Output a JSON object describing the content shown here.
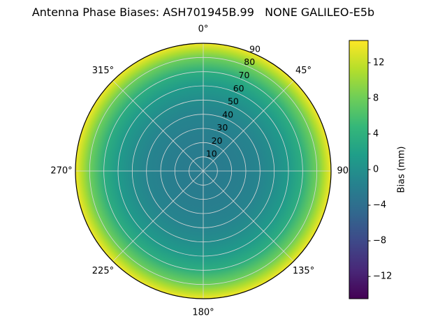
{
  "title": "Antenna Phase Biases: ASH701945B.99   NONE GALILEO-E5b",
  "chart_data": {
    "type": "heatmap",
    "projection": "polar",
    "title": "Antenna Phase Biases: ASH701945B.99   NONE GALILEO-E5b",
    "theta_zero_location": "top",
    "theta_direction": "clockwise",
    "theta_tick_angles": [
      0,
      45,
      90,
      135,
      180,
      225,
      270,
      315
    ],
    "theta_tick_labels": [
      "0°",
      "45°",
      "90°",
      "135°",
      "180°",
      "225°",
      "270°",
      "315°"
    ],
    "radial_ticks": [
      10,
      20,
      30,
      40,
      50,
      60,
      70,
      80,
      90
    ],
    "radial_tick_angle_deg": 22.5,
    "rmax": 90,
    "grid": true,
    "grid_color": "#d8d8d8",
    "outline_color": "#000000",
    "radial_profile": {
      "description": "bias (mm) versus zenith angle (deg), azimuthally near-uniform",
      "zenith_deg": [
        0,
        10,
        20,
        30,
        40,
        50,
        60,
        70,
        80,
        85,
        90
      ],
      "bias_mm": [
        -2.5,
        -2.4,
        -2.2,
        -1.9,
        -1.4,
        -0.4,
        1.2,
        3.6,
        8.0,
        11.0,
        14.0
      ]
    },
    "colorbar": {
      "label": "Bias (mm)",
      "ticks": [
        12,
        8,
        4,
        0,
        -4,
        -8,
        -12
      ],
      "vmin": -14.5,
      "vmax": 14.5,
      "position": "right"
    },
    "colormap": {
      "name": "viridis",
      "stops": [
        "#440154",
        "#482878",
        "#3e4989",
        "#31688e",
        "#26828e",
        "#1f9e89",
        "#35b779",
        "#6ece58",
        "#b5de2b",
        "#fde725"
      ]
    }
  }
}
